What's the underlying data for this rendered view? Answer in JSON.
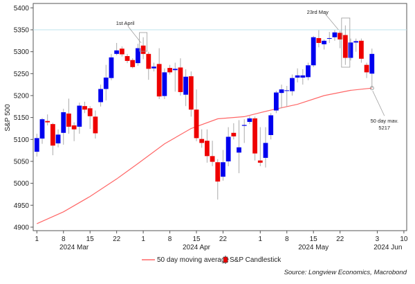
{
  "chart_data": {
    "type": "candlestick",
    "ylabel": "S&P 500",
    "ylim": [
      4892,
      5410
    ],
    "yticks": [
      4900,
      4950,
      5000,
      5050,
      5100,
      5150,
      5200,
      5250,
      5300,
      5350,
      5400
    ],
    "reference_line": 5350,
    "xticks": [
      {
        "date": "2024-03-01",
        "label": "1"
      },
      {
        "date": "2024-03-08",
        "label": "8"
      },
      {
        "date": "2024-03-15",
        "label": "15"
      },
      {
        "date": "2024-03-22",
        "label": "22"
      },
      {
        "date": "2024-04-01",
        "label": "1"
      },
      {
        "date": "2024-04-08",
        "label": "8"
      },
      {
        "date": "2024-04-15",
        "label": "15"
      },
      {
        "date": "2024-04-22",
        "label": "22"
      },
      {
        "date": "2024-05-01",
        "label": "1"
      },
      {
        "date": "2024-05-08",
        "label": "8"
      },
      {
        "date": "2024-05-15",
        "label": "15"
      },
      {
        "date": "2024-05-22",
        "label": "22"
      },
      {
        "date": "2024-06-03",
        "label": "3"
      },
      {
        "date": "2024-06-10",
        "label": "10"
      }
    ],
    "month_labels": [
      {
        "date": "2024-03-12",
        "label": "2024 Mar"
      },
      {
        "date": "2024-04-15",
        "label": "2024 Apr"
      },
      {
        "date": "2024-05-15",
        "label": "2024 May"
      },
      {
        "date": "2024-06-05",
        "label": "2024 Jun"
      }
    ],
    "colors": {
      "up": "#0000ee",
      "down": "#ee0000",
      "ma": "#ff6666",
      "reference": "#bde3ee",
      "wick": "#aaaaaa"
    },
    "candles": [
      [
        "2024-03-01",
        5072,
        5113,
        5061,
        5103
      ],
      [
        "2024-03-04",
        5102,
        5149,
        5090,
        5146
      ],
      [
        "2024-03-05",
        5142,
        5157,
        5132,
        5139
      ],
      [
        "2024-03-06",
        5135,
        5138,
        5064,
        5086
      ],
      [
        "2024-03-07",
        5091,
        5123,
        5082,
        5111
      ],
      [
        "2024-03-08",
        5115,
        5170,
        5088,
        5162
      ],
      [
        "2024-03-11",
        5159,
        5193,
        5113,
        5129
      ],
      [
        "2024-03-12",
        5132,
        5139,
        5096,
        5123
      ],
      [
        "2024-03-13",
        5129,
        5184,
        5113,
        5177
      ],
      [
        "2024-03-14",
        5176,
        5186,
        5160,
        5168
      ],
      [
        "2024-03-15",
        5171,
        5176,
        5124,
        5153
      ],
      [
        "2024-03-18",
        5152,
        5166,
        5102,
        5114
      ],
      [
        "2024-03-19",
        5185,
        5225,
        5175,
        5215
      ],
      [
        "2024-03-20",
        5215,
        5270,
        5189,
        5241
      ],
      [
        "2024-03-21",
        5240,
        5295,
        5235,
        5287
      ],
      [
        "2024-03-22",
        5295,
        5320,
        5292,
        5303
      ],
      [
        "2024-03-25",
        5307,
        5312,
        5289,
        5294
      ],
      [
        "2024-03-26",
        5290,
        5295,
        5274,
        5279
      ],
      [
        "2024-03-27",
        5281,
        5285,
        5262,
        5265
      ],
      [
        "2024-03-28",
        5274,
        5318,
        5268,
        5308
      ],
      [
        "2024-04-01",
        5314,
        5333,
        5283,
        5295
      ],
      [
        "2024-04-02",
        5295,
        5300,
        5236,
        5261
      ],
      [
        "2024-04-03",
        5262,
        5275,
        5255,
        5266
      ],
      [
        "2024-04-04",
        5272,
        5308,
        5192,
        5198
      ],
      [
        "2024-04-05",
        5199,
        5262,
        5192,
        5253
      ],
      [
        "2024-04-08",
        5263,
        5270,
        5248,
        5253
      ],
      [
        "2024-04-09",
        5258,
        5275,
        5209,
        5261
      ],
      [
        "2024-04-10",
        5264,
        5285,
        5200,
        5208
      ],
      [
        "2024-04-11",
        5202,
        5260,
        5176,
        5243
      ],
      [
        "2024-04-12",
        5244,
        5255,
        5152,
        5168
      ],
      [
        "2024-04-15",
        5168,
        5214,
        5096,
        5103
      ],
      [
        "2024-04-16",
        5101,
        5123,
        5081,
        5092
      ],
      [
        "2024-04-17",
        5097,
        5123,
        5047,
        5062
      ],
      [
        "2024-04-18",
        5062,
        5097,
        5039,
        5049
      ],
      [
        "2024-04-19",
        5048,
        5055,
        4963,
        5004
      ],
      [
        "2024-04-22",
        5015,
        5076,
        5006,
        5048
      ],
      [
        "2024-04-23",
        5050,
        5128,
        5039,
        5106
      ],
      [
        "2024-04-24",
        5115,
        5137,
        5100,
        5107
      ],
      [
        "2024-04-25",
        5070,
        5144,
        5023,
        5082
      ],
      [
        "2024-04-26",
        5131,
        5146,
        5092,
        5133
      ],
      [
        "2024-04-29",
        5140,
        5153,
        5135,
        5148
      ],
      [
        "2024-04-30",
        5148,
        5152,
        5052,
        5068
      ],
      [
        "2024-05-01",
        5052,
        5128,
        5039,
        5047
      ],
      [
        "2024-05-02",
        5058,
        5128,
        5036,
        5092
      ],
      [
        "2024-05-03",
        5110,
        5160,
        5100,
        5155
      ],
      [
        "2024-05-06",
        5166,
        5211,
        5160,
        5207
      ],
      [
        "2024-05-07",
        5206,
        5225,
        5171,
        5214
      ],
      [
        "2024-05-08",
        5211,
        5222,
        5175,
        5212
      ],
      [
        "2024-05-09",
        5210,
        5248,
        5200,
        5240
      ],
      [
        "2024-05-10",
        5241,
        5262,
        5230,
        5246
      ],
      [
        "2024-05-13",
        5241,
        5260,
        5225,
        5246
      ],
      [
        "2024-05-14",
        5242,
        5275,
        5235,
        5269
      ],
      [
        "2024-05-15",
        5269,
        5336,
        5265,
        5333
      ],
      [
        "2024-05-16",
        5331,
        5349,
        5310,
        5320
      ],
      [
        "2024-05-17",
        5317,
        5328,
        5305,
        5325
      ],
      [
        "2024-05-20",
        5330,
        5345,
        5320,
        5331
      ],
      [
        "2024-05-21",
        5333,
        5349,
        5325,
        5344
      ],
      [
        "2024-05-22",
        5343,
        5348,
        5308,
        5328
      ],
      [
        "2024-05-23",
        5338,
        5360,
        5270,
        5286
      ],
      [
        "2024-05-24",
        5286,
        5330,
        5280,
        5321
      ],
      [
        "2024-05-28",
        5321,
        5330,
        5300,
        5324
      ],
      [
        "2024-05-29",
        5325,
        5330,
        5275,
        5284
      ],
      [
        "2024-05-30",
        5270,
        5275,
        5240,
        5253
      ],
      [
        "2024-05-31",
        5250,
        5307,
        5217,
        5295
      ]
    ],
    "moving_average_50d": [
      [
        "2024-03-01",
        4908
      ],
      [
        "2024-03-08",
        4935
      ],
      [
        "2024-03-15",
        4970
      ],
      [
        "2024-03-22",
        5010
      ],
      [
        "2024-03-28",
        5045
      ],
      [
        "2024-04-05",
        5090
      ],
      [
        "2024-04-12",
        5125
      ],
      [
        "2024-04-19",
        5147
      ],
      [
        "2024-04-26",
        5152
      ],
      [
        "2024-05-03",
        5167
      ],
      [
        "2024-05-10",
        5180
      ],
      [
        "2024-05-17",
        5200
      ],
      [
        "2024-05-24",
        5212
      ],
      [
        "2024-05-31",
        5217
      ]
    ],
    "annotations": [
      {
        "text": "1st April",
        "date": "2024-04-01"
      },
      {
        "text": "23rd May",
        "date": "2024-05-23"
      },
      {
        "text": "50 day mav.",
        "value_text": "5217",
        "date": "2024-05-31",
        "value": 5217
      }
    ],
    "legend": {
      "ma_label": "50 day moving average",
      "candle_label": "S&P Candlestick",
      "placement": "bottom"
    },
    "source": "Source: Longview Economics, Macrobond"
  }
}
